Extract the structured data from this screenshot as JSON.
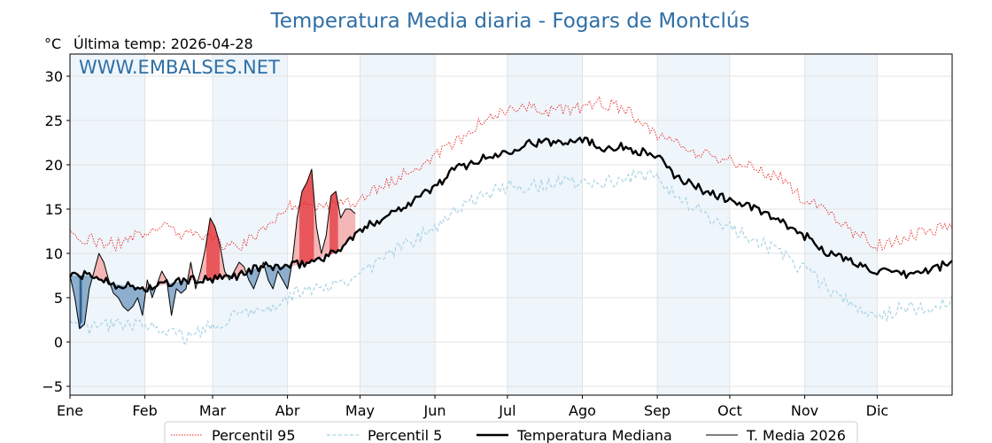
{
  "title": "Temperatura Media diaria - Fogars de Montclús",
  "unit": "°C",
  "last_temp": "Última temp: 2026-04-28",
  "watermark": "WWW.EMBALSES.NET",
  "colors": {
    "title": "#2f6fa5",
    "p95": "#e8231f",
    "p5": "#a9d3e6",
    "median": "#000000",
    "current": "#000000",
    "above_fill": "#f4b6b6",
    "above_fill_strong": "#e8565a",
    "below_fill": "#8daecd",
    "below_fill_strong": "#2f5f8f",
    "band": "#eef5fb"
  },
  "chart_data": {
    "type": "line",
    "xlabel": "",
    "ylabel": "°C",
    "xlim": [
      1,
      366
    ],
    "ylim": [
      -6,
      32.5
    ],
    "y_ticks": [
      -5,
      0,
      5,
      10,
      15,
      20,
      25,
      30
    ],
    "y_tick_labels": [
      "−5",
      "0",
      "5",
      "10",
      "15",
      "20",
      "25",
      "30"
    ],
    "month_ticks": [
      {
        "label": "Ene",
        "day": 1
      },
      {
        "label": "Feb",
        "day": 32
      },
      {
        "label": "Mar",
        "day": 60
      },
      {
        "label": "Abr",
        "day": 91
      },
      {
        "label": "May",
        "day": 121
      },
      {
        "label": "Jun",
        "day": 152
      },
      {
        "label": "Jul",
        "day": 182
      },
      {
        "label": "Ago",
        "day": 213
      },
      {
        "label": "Sep",
        "day": 244
      },
      {
        "label": "Oct",
        "day": 274
      },
      {
        "label": "Nov",
        "day": 305
      },
      {
        "label": "Dic",
        "day": 335
      }
    ],
    "grid": true,
    "legend_position": "bottom",
    "series": [
      {
        "name": "Percentil 95",
        "style": "dotted",
        "x": [
          1,
          10,
          20,
          32,
          40,
          50,
          60,
          70,
          80,
          91,
          100,
          110,
          121,
          130,
          140,
          152,
          160,
          170,
          182,
          190,
          200,
          213,
          220,
          230,
          244,
          250,
          260,
          274,
          285,
          295,
          305,
          315,
          325,
          335,
          345,
          355,
          366
        ],
        "values": [
          12.3,
          11.5,
          11,
          12.5,
          13,
          12,
          11.5,
          10.5,
          12.5,
          15.5,
          15.5,
          15.5,
          16,
          17.5,
          19,
          21,
          22.5,
          24.5,
          26,
          26.5,
          26,
          26.5,
          27,
          26.5,
          23.5,
          22.5,
          21.5,
          20.5,
          19.5,
          18.5,
          16,
          14.5,
          12.5,
          11,
          11.5,
          12.5,
          13
        ]
      },
      {
        "name": "Percentil 5",
        "style": "dashed",
        "x": [
          1,
          10,
          20,
          32,
          40,
          50,
          60,
          70,
          80,
          91,
          100,
          110,
          121,
          130,
          140,
          152,
          160,
          170,
          182,
          190,
          200,
          213,
          220,
          230,
          244,
          250,
          260,
          274,
          285,
          295,
          305,
          315,
          325,
          335,
          345,
          355,
          366
        ],
        "values": [
          2,
          1.5,
          2,
          2,
          1,
          0.5,
          2,
          3,
          3.5,
          5,
          6,
          6.5,
          7.5,
          9.5,
          11,
          13,
          14.5,
          16.5,
          17.5,
          17.5,
          18,
          18,
          18,
          18.5,
          19,
          17,
          15,
          13,
          11.5,
          10,
          8,
          6,
          4.5,
          2.5,
          4,
          3.5,
          4.5
        ]
      },
      {
        "name": "Temperatura Mediana",
        "style": "solid-thick",
        "x": [
          1,
          10,
          20,
          32,
          40,
          50,
          60,
          70,
          80,
          91,
          100,
          110,
          121,
          130,
          140,
          152,
          160,
          170,
          182,
          190,
          200,
          213,
          220,
          230,
          244,
          250,
          260,
          274,
          285,
          295,
          305,
          315,
          325,
          335,
          345,
          355,
          366
        ],
        "values": [
          7.5,
          7.5,
          6.5,
          6,
          6.5,
          7,
          7,
          7.5,
          8.5,
          8.5,
          9,
          10,
          12.5,
          14,
          15.5,
          17.5,
          19.5,
          20.5,
          21.5,
          22.5,
          22.5,
          23,
          22,
          22,
          21,
          19,
          17.5,
          16,
          15,
          13.5,
          12,
          10,
          9,
          8,
          7.5,
          8,
          9
        ]
      },
      {
        "name": "T. Media 2026",
        "style": "solid-thin",
        "x": [
          1,
          3,
          5,
          7,
          9,
          11,
          13,
          15,
          17,
          19,
          21,
          23,
          25,
          27,
          29,
          31,
          33,
          35,
          37,
          39,
          41,
          43,
          45,
          47,
          49,
          51,
          53,
          55,
          57,
          59,
          61,
          63,
          65,
          67,
          69,
          71,
          73,
          75,
          77,
          79,
          81,
          83,
          85,
          87,
          89,
          91,
          93,
          95,
          97,
          99,
          101,
          103,
          105,
          107,
          109,
          111,
          113,
          115,
          117,
          119
        ],
        "values": [
          7.5,
          5,
          1.5,
          2,
          6,
          8,
          10,
          9,
          7,
          5.5,
          5,
          4,
          3.5,
          4,
          5,
          3,
          7,
          5,
          6.5,
          8,
          7,
          3,
          6,
          5.5,
          6,
          9,
          6,
          8,
          10.5,
          14,
          13,
          11,
          8,
          7,
          8,
          9,
          8.5,
          7,
          6,
          7.5,
          9,
          7,
          6,
          8,
          7,
          6,
          9,
          14,
          17,
          18,
          19.5,
          13,
          10,
          12,
          16.5,
          17,
          14,
          15,
          15,
          14.5
        ]
      }
    ]
  },
  "legend": [
    {
      "label": "Percentil 95",
      "style": "dotted",
      "color": "#e8231f"
    },
    {
      "label": "Percentil 5",
      "style": "dashed",
      "color": "#a9d3e6"
    },
    {
      "label": "Temperatura Mediana",
      "style": "solid-thick",
      "color": "#000000"
    },
    {
      "label": "T. Media 2026",
      "style": "solid-thin",
      "color": "#000000"
    }
  ]
}
